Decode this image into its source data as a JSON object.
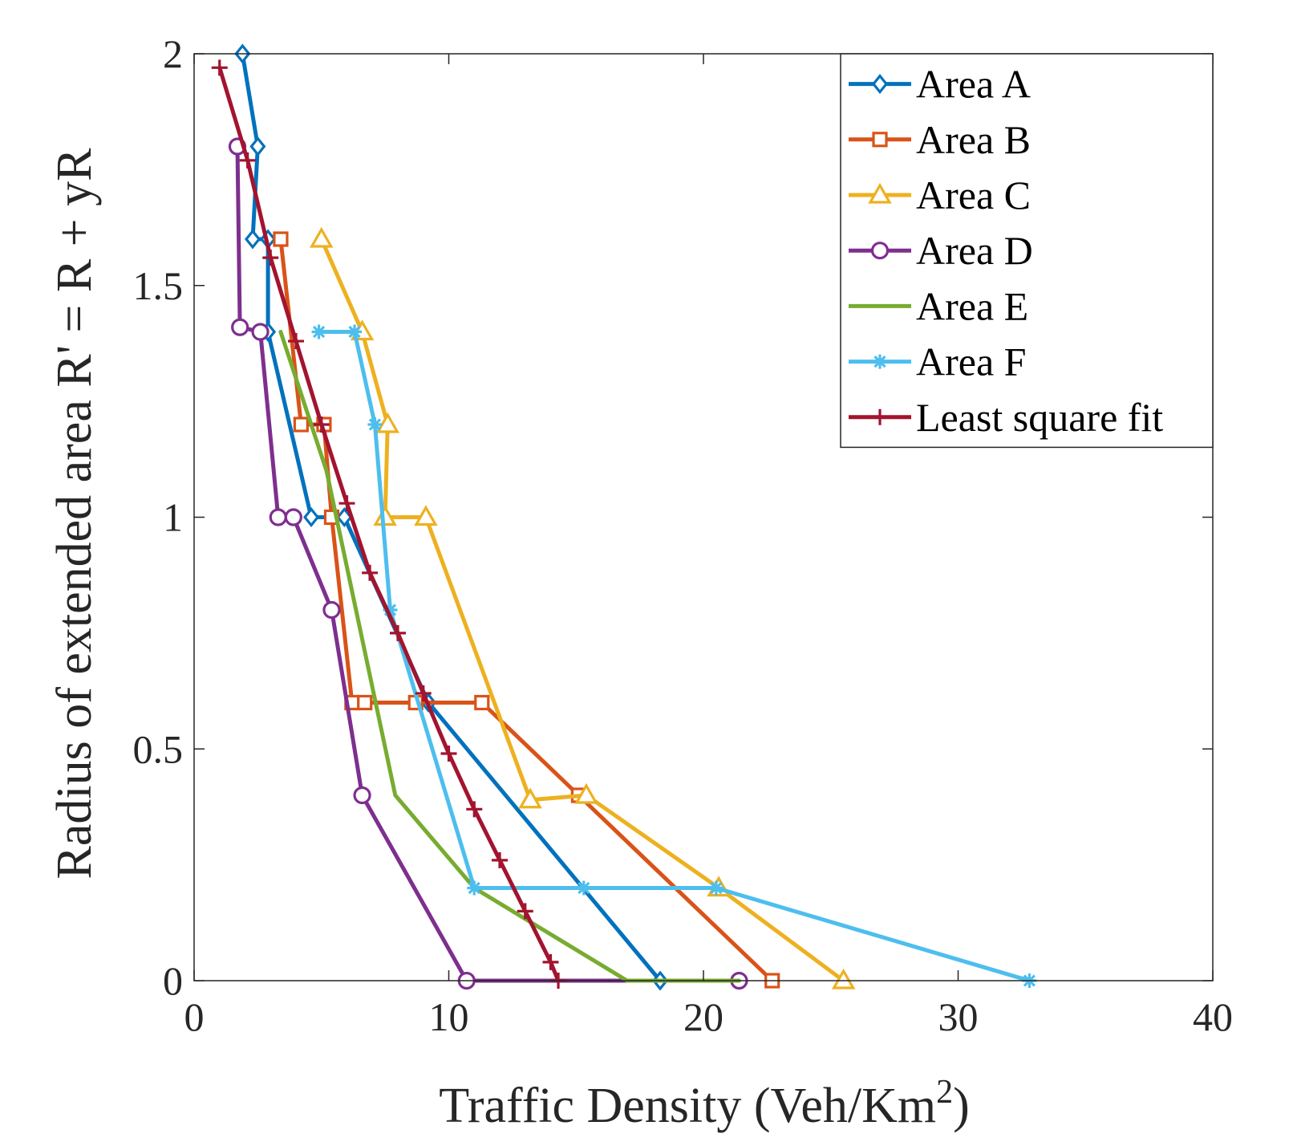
{
  "chart_data": {
    "type": "line",
    "title": "",
    "xlabel": "Traffic Density (Veh/Km",
    "xlabel_superscript": "2",
    "xlabel_suffix": ")",
    "ylabel": "Radius of extended area R' = R + yR",
    "xlim": [
      0,
      40
    ],
    "ylim": [
      0,
      2
    ],
    "xticks": [
      0,
      10,
      20,
      30,
      40
    ],
    "yticks": [
      0,
      0.5,
      1,
      1.5,
      2
    ],
    "xtick_labels": [
      "0",
      "10",
      "20",
      "30",
      "40"
    ],
    "ytick_labels": [
      "0",
      "0.5",
      "1",
      "1.5",
      "2"
    ],
    "grid": false,
    "legend_position": "top-right",
    "series": [
      {
        "name": "Area A",
        "color": "#0072BD",
        "marker": "diamond",
        "points": [
          [
            1.9,
            2.0
          ],
          [
            2.5,
            1.8
          ],
          [
            2.3,
            1.6
          ],
          [
            2.9,
            1.6
          ],
          [
            2.9,
            1.4
          ],
          [
            4.6,
            1.0
          ],
          [
            5.9,
            1.0
          ],
          [
            9.2,
            0.6
          ],
          [
            18.3,
            0.0
          ]
        ]
      },
      {
        "name": "Area B",
        "color": "#D95319",
        "marker": "square",
        "points": [
          [
            3.4,
            1.6
          ],
          [
            4.2,
            1.2
          ],
          [
            5.1,
            1.2
          ],
          [
            5.4,
            1.0
          ],
          [
            6.2,
            0.6
          ],
          [
            6.7,
            0.6
          ],
          [
            8.7,
            0.6
          ],
          [
            11.3,
            0.6
          ],
          [
            15.1,
            0.4
          ],
          [
            22.7,
            0.0
          ]
        ]
      },
      {
        "name": "Area C",
        "color": "#EDB120",
        "marker": "triangle",
        "points": [
          [
            5.0,
            1.6
          ],
          [
            6.6,
            1.4
          ],
          [
            7.6,
            1.2
          ],
          [
            7.5,
            1.0
          ],
          [
            9.1,
            1.0
          ],
          [
            13.2,
            0.39
          ],
          [
            15.4,
            0.4
          ],
          [
            20.6,
            0.2
          ],
          [
            25.5,
            0.0
          ]
        ]
      },
      {
        "name": "Area D",
        "color": "#7E2F8E",
        "marker": "circle",
        "points": [
          [
            1.7,
            1.8
          ],
          [
            1.8,
            1.41
          ],
          [
            2.6,
            1.4
          ],
          [
            3.3,
            1.0
          ],
          [
            3.9,
            1.0
          ],
          [
            5.4,
            0.8
          ],
          [
            6.6,
            0.4
          ],
          [
            10.7,
            0.0
          ],
          [
            21.4,
            0.0
          ]
        ]
      },
      {
        "name": "Area E",
        "color": "#77AC30",
        "marker": "none",
        "points": [
          [
            3.4,
            1.4
          ],
          [
            4.6,
            1.2
          ],
          [
            5.2,
            1.1
          ],
          [
            7.9,
            0.4
          ],
          [
            11.0,
            0.2
          ],
          [
            17.0,
            0.0
          ],
          [
            21.4,
            0.0
          ]
        ]
      },
      {
        "name": "Area F",
        "color": "#4DBEEE",
        "marker": "asterisk",
        "points": [
          [
            4.9,
            1.4
          ],
          [
            6.3,
            1.4
          ],
          [
            7.1,
            1.2
          ],
          [
            7.7,
            0.8
          ],
          [
            11.0,
            0.2
          ],
          [
            15.3,
            0.2
          ],
          [
            20.5,
            0.2
          ],
          [
            32.8,
            0.0
          ]
        ]
      },
      {
        "name": "Least square fit",
        "color": "#A2142F",
        "marker": "plus",
        "points": [
          [
            1.0,
            1.97
          ],
          [
            2.1,
            1.77
          ],
          [
            3.0,
            1.56
          ],
          [
            4.0,
            1.38
          ],
          [
            5.0,
            1.2
          ],
          [
            6.0,
            1.03
          ],
          [
            6.9,
            0.88
          ],
          [
            8.0,
            0.75
          ],
          [
            9.0,
            0.62
          ],
          [
            10.0,
            0.49
          ],
          [
            11.0,
            0.37
          ],
          [
            12.0,
            0.26
          ],
          [
            13.0,
            0.15
          ],
          [
            14.0,
            0.04
          ],
          [
            14.3,
            0.0
          ]
        ]
      }
    ]
  }
}
